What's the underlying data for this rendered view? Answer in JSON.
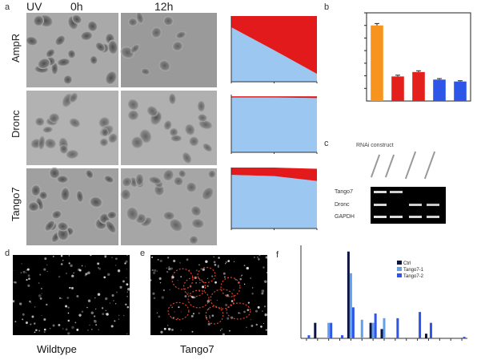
{
  "panel_labels": {
    "a": "a",
    "b": "b",
    "c": "c",
    "d": "d",
    "e": "e",
    "f": "f"
  },
  "panel_a": {
    "uv_label": "UV",
    "time_0": "0h",
    "time_12": "12h",
    "rows": [
      "AmpR",
      "Dronc",
      "Tango7"
    ]
  },
  "panel_c": {
    "title": "RNAi construct",
    "rows": [
      "Tango7",
      "Dronc",
      "GAPDH"
    ]
  },
  "panel_d": {
    "caption": "Wildtype"
  },
  "panel_e": {
    "caption": "Tango7"
  },
  "panel_f": {
    "legend": [
      "Ctrl",
      "Tango7-1",
      "Tango7-2"
    ]
  },
  "colors": {
    "orange": "#f7941d",
    "red": "#e3201b",
    "blue": "#2d55e8",
    "area_blue": "#9cc7f0",
    "area_red": "#e31a1c",
    "navy": "#0d1440",
    "light_blue": "#5fa0f0"
  },
  "chart_data": [
    {
      "type": "area",
      "panel": "a-AmpR",
      "x": [
        0,
        6,
        12
      ],
      "series": [
        {
          "color": "#9cc7f0",
          "values": [
            83,
            48,
            12
          ]
        },
        {
          "color": "#e31a1c",
          "values": [
            17,
            52,
            88
          ]
        }
      ],
      "ylim": [
        0,
        100
      ]
    },
    {
      "type": "area",
      "panel": "a-Dronc",
      "x": [
        0,
        6,
        12
      ],
      "series": [
        {
          "color": "#9cc7f0",
          "values": [
            95,
            95,
            94
          ]
        },
        {
          "color": "#e31a1c",
          "values": [
            2,
            2,
            3
          ]
        }
      ],
      "ylim": [
        0,
        100
      ]
    },
    {
      "type": "area",
      "panel": "a-Tango7",
      "x": [
        0,
        6,
        12
      ],
      "series": [
        {
          "color": "#9cc7f0",
          "values": [
            88,
            86,
            78
          ]
        },
        {
          "color": "#e31a1c",
          "values": [
            12,
            14,
            20
          ]
        }
      ],
      "ylim": [
        0,
        100
      ]
    },
    {
      "type": "bar",
      "panel": "b",
      "values": [
        60000,
        19500,
        23000,
        17000,
        15500
      ],
      "errors": [
        1500,
        1000,
        1000,
        800,
        600
      ],
      "colors": [
        "#f7941d",
        "#e3201b",
        "#e3201b",
        "#2d55e8",
        "#2d55e8"
      ],
      "ylim": [
        0,
        70000
      ],
      "yticks": [
        10000,
        20000,
        30000,
        40000,
        50000,
        60000,
        70000
      ]
    },
    {
      "type": "bar",
      "panel": "f",
      "ylim": [
        0,
        60
      ],
      "series": [
        {
          "color": "#0d1440",
          "values": [
            0,
            10,
            0,
            0,
            56,
            0,
            10,
            6,
            0,
            0,
            0,
            3,
            0,
            0,
            0
          ]
        },
        {
          "color": "#5fa0f0",
          "values": [
            0,
            0,
            10,
            0,
            42,
            12,
            10,
            13,
            0,
            0,
            0,
            0,
            0,
            0,
            0
          ]
        },
        {
          "color": "#2d55e8",
          "values": [
            2,
            0,
            10,
            2,
            20,
            0,
            16,
            0,
            13,
            0,
            17,
            10,
            0,
            0,
            1
          ]
        }
      ]
    }
  ]
}
